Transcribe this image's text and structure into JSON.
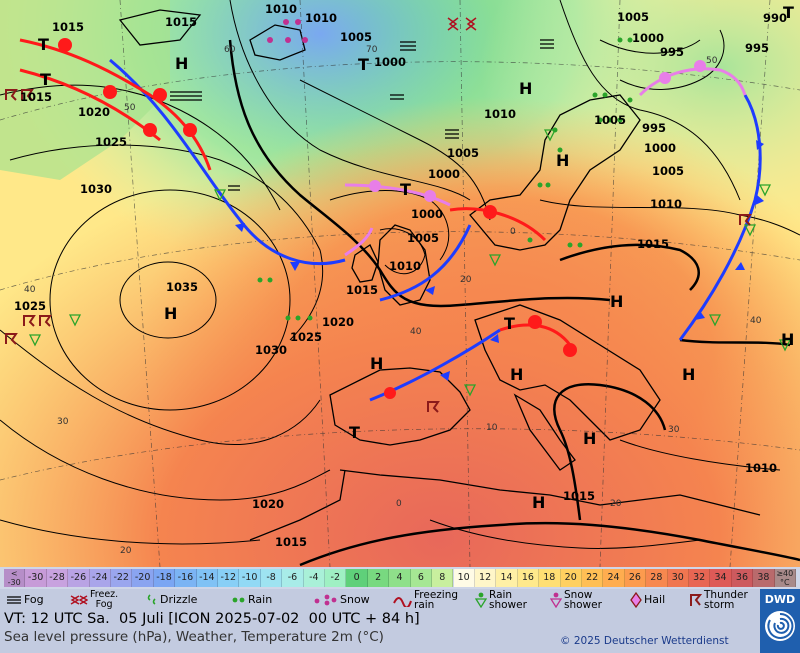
{
  "map": {
    "pressure_labels": [
      "1015",
      "1010",
      "1010",
      "1005",
      "1000",
      "1005",
      "995",
      "990",
      "995",
      "1000",
      "1015",
      "1020",
      "1025",
      "1030",
      "1035",
      "1025",
      "1020",
      "1025",
      "1030",
      "1015",
      "1010",
      "1005",
      "1000",
      "1000",
      "1005",
      "1010",
      "1015",
      "1015",
      "1010",
      "1020",
      "1015",
      "1005",
      "1000",
      "1005",
      "1010",
      "995",
      "1015"
    ],
    "system_labels": [
      "T",
      "T",
      "T",
      "T",
      "T",
      "T",
      "T",
      "H",
      "H",
      "H",
      "H",
      "H",
      "H",
      "H",
      "H",
      "H",
      "H",
      "H"
    ],
    "temp_labels": [
      "60",
      "70",
      "50",
      "50",
      "40",
      "40",
      "40",
      "30",
      "30",
      "20",
      "20",
      "20",
      "0",
      "10",
      "0"
    ]
  },
  "scale": {
    "cells": [
      {
        "label": "<\n-30",
        "color": "#b68ec8"
      },
      {
        "label": "-30",
        "color": "#c79bd8"
      },
      {
        "label": "-28",
        "color": "#c8a2df"
      },
      {
        "label": "-26",
        "color": "#b9a3e4"
      },
      {
        "label": "-24",
        "color": "#a9a5ea"
      },
      {
        "label": "-22",
        "color": "#9aa6ee"
      },
      {
        "label": "-20",
        "color": "#8aa4f0"
      },
      {
        "label": "-18",
        "color": "#7ba6f3"
      },
      {
        "label": "-16",
        "color": "#7bb4f4"
      },
      {
        "label": "-14",
        "color": "#80c2f5"
      },
      {
        "label": "-12",
        "color": "#88cff6"
      },
      {
        "label": "-10",
        "color": "#92d9f5"
      },
      {
        "label": "-8",
        "color": "#9ee3f1"
      },
      {
        "label": "-6",
        "color": "#a8ece8"
      },
      {
        "label": "-4",
        "color": "#a9f0d8"
      },
      {
        "label": "-2",
        "color": "#9ff0c3"
      },
      {
        "label": "0",
        "color": "#5fd07a"
      },
      {
        "label": "2",
        "color": "#78d980"
      },
      {
        "label": "4",
        "color": "#8fe08a"
      },
      {
        "label": "6",
        "color": "#a6e794"
      },
      {
        "label": "8",
        "color": "#c8ef9e"
      },
      {
        "label": "10",
        "color": "#fffbe6"
      },
      {
        "label": "12",
        "color": "#fff6c9"
      },
      {
        "label": "14",
        "color": "#fff0a6"
      },
      {
        "label": "16",
        "color": "#ffe98c"
      },
      {
        "label": "18",
        "color": "#ffdf73"
      },
      {
        "label": "20",
        "color": "#ffd060"
      },
      {
        "label": "22",
        "color": "#ffbf55"
      },
      {
        "label": "24",
        "color": "#ffad4f"
      },
      {
        "label": "26",
        "color": "#fc9b4e"
      },
      {
        "label": "28",
        "color": "#f7884f"
      },
      {
        "label": "30",
        "color": "#f07650"
      },
      {
        "label": "32",
        "color": "#e86653"
      },
      {
        "label": "34",
        "color": "#de5a57"
      },
      {
        "label": "36",
        "color": "#cd5a5e"
      },
      {
        "label": "38",
        "color": "#b96a6c"
      },
      {
        "label": "≥40\n°C",
        "color": "#a88a8a"
      }
    ]
  },
  "legend": {
    "fog": "Fog",
    "freezing_fog": "Freez.\nFog",
    "drizzle": "Drizzle",
    "rain": "Rain",
    "snow": "Snow",
    "freezing_rain": "Freezing\nrain",
    "rain_shower": "Rain\nshower",
    "snow_shower": "Snow\nshower",
    "hail": "Hail",
    "thunderstorm": "Thunder\nstorm"
  },
  "info": {
    "valid_time": "VT: 12 UTC Sa.  05 Juli [ICON 2025-07-02  00 UTC + 84 h]",
    "subtitle": "Sea level pressure (hPa), Weather, Temperature 2m (°C)",
    "copyright": "© 2025 Deutscher Wetterdienst",
    "logo_text": "DWD"
  },
  "colors": {
    "cold_front": "#1e3cff",
    "warm_front": "#ff1a1a",
    "occlusion": "#e87ee8",
    "land_hot": "#f47a50",
    "sea_warm": "#ffe27a",
    "north_cool": "#8ee0a0"
  }
}
